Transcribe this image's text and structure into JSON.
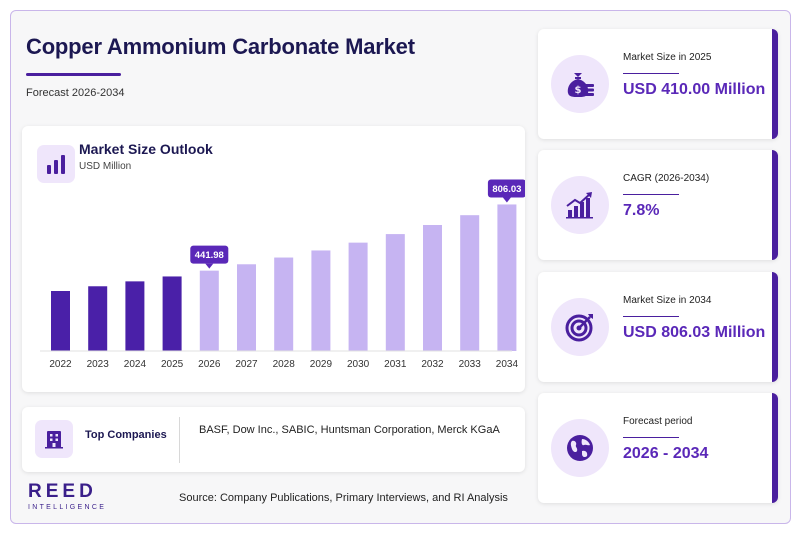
{
  "header": {
    "title": "Copper Ammonium Carbonate Market",
    "subtitle": "Forecast 2026-2034"
  },
  "chart": {
    "title": "Market Size Outlook",
    "unit": "USD Million"
  },
  "chart_data": {
    "type": "bar",
    "title": "Market Size Outlook",
    "ylabel": "USD Million",
    "categories": [
      "2022",
      "2023",
      "2024",
      "2025",
      "2026",
      "2027",
      "2028",
      "2029",
      "2030",
      "2031",
      "2032",
      "2033",
      "2034"
    ],
    "values": [
      330,
      356,
      383,
      410,
      441.98,
      477,
      514,
      553,
      596,
      643,
      693,
      747,
      806.03
    ],
    "highlighted_labels": [
      {
        "index": 4,
        "label": "441.98"
      },
      {
        "index": 12,
        "label": "806.03"
      }
    ],
    "historical_color": "#4a20a8",
    "forecast_color": "#c6b4f2",
    "label_color": "#5a28b8",
    "ylim": [
      0,
      880
    ],
    "grid": false,
    "legend": "none"
  },
  "companies": {
    "label": "Top Companies",
    "list": "BASF, Dow Inc., SABIC, Huntsman Corporation, Merck KGaA"
  },
  "stats": [
    {
      "label": "Market Size in 2025",
      "value": "USD 410.00 Million",
      "icon": "money-bag-icon"
    },
    {
      "label": "CAGR (2026-2034)",
      "value": "7.8%",
      "icon": "growth-chart-icon"
    },
    {
      "label": "Market Size in 2034",
      "value": "USD 806.03 Million",
      "icon": "target-icon"
    },
    {
      "label": "Forecast period",
      "value": "2026 - 2034",
      "icon": "globe-icon"
    }
  ],
  "footer": {
    "logo_main": "REED",
    "logo_sub": "INTELLIGENCE",
    "source": "Source: Company Publications, Primary Interviews, and RI Analysis"
  },
  "colors": {
    "accent": "#4a1f9e",
    "title": "#1c1852",
    "value": "#5a28b8"
  }
}
